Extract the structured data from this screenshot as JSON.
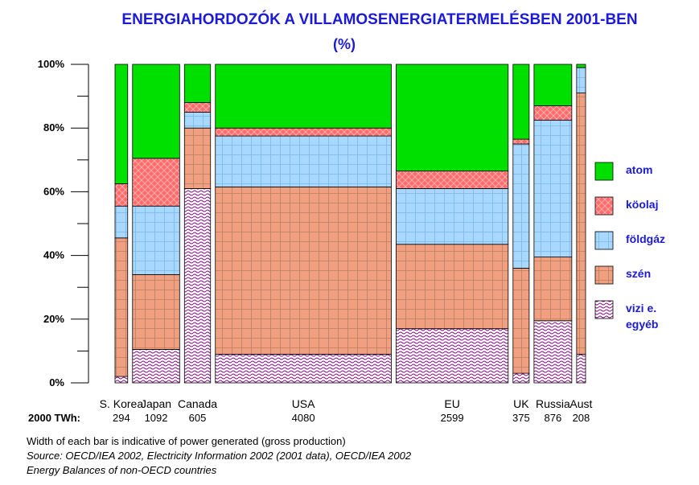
{
  "colors": {
    "atom": "#00e000",
    "koolaj": "#ff6a6a",
    "foldgaz": "#a8d8ff",
    "szen": "#f0a080",
    "vizi": "#ffffff",
    "pattern_grid": "#b88060",
    "vizi_wave": "#800080",
    "title": "#1a1ad8",
    "legend_text": "#1a1ad8"
  },
  "chart_data": {
    "type": "bar",
    "subtype": "variable-width stacked bar (100%)",
    "title": "ENERGIAHORDOZÓK A VILLAMOSENERGIATERMELÉSBEN 2001-BEN",
    "subtitle": "(%)",
    "ylim": [
      0,
      100
    ],
    "yticks": [
      "0%",
      "20%",
      "40%",
      "60%",
      "80%",
      "100%"
    ],
    "twh_row_label": "2000 TWh:",
    "categories": [
      "S. Korea",
      "Japan",
      "Canada",
      "USA",
      "EU",
      "UK",
      "Russia",
      "Aust"
    ],
    "twh_labels": [
      "294",
      "1092",
      "605",
      "4080",
      "2599",
      "375",
      "876",
      "208"
    ],
    "twh": [
      294,
      1092,
      605,
      4080,
      2599,
      375,
      876,
      208
    ],
    "series": [
      {
        "name": "vizi e. egyéb",
        "key": "vizi",
        "values": [
          2,
          10.5,
          61,
          9,
          17,
          3,
          19.5,
          9
        ]
      },
      {
        "name": "szén",
        "key": "szen",
        "values": [
          43.5,
          23.5,
          19,
          52.5,
          26.5,
          33,
          20,
          82
        ]
      },
      {
        "name": "földgáz",
        "key": "foldgaz",
        "values": [
          10,
          21.5,
          5,
          16,
          17.5,
          39,
          43,
          8
        ]
      },
      {
        "name": "kőolaj",
        "key": "koolaj",
        "values": [
          7,
          15,
          3,
          2.5,
          5.5,
          1.5,
          4.5,
          0
        ]
      },
      {
        "name": "atom",
        "key": "atom",
        "values": [
          37.5,
          29.5,
          12,
          20,
          33.5,
          23.5,
          13,
          1
        ]
      }
    ],
    "legend": {
      "placement": "right",
      "entries": [
        {
          "key": "atom",
          "label": "atom"
        },
        {
          "key": "koolaj",
          "label": "köolaj"
        },
        {
          "key": "foldgaz",
          "label": "földgáz"
        },
        {
          "key": "szen",
          "label": "szén"
        },
        {
          "key": "vizi",
          "label_lines": [
            "vizi e.",
            "egyéb"
          ]
        }
      ]
    },
    "grid": false
  },
  "notes": {
    "line1": "Width of each bar is indicative of power generated  (gross production)",
    "line2": "Source: OECD/IEA 2002, Electricity Information 2002 (2001 data), OECD/IEA 2002",
    "line3": "Energy Balances of non-OECD countries"
  }
}
